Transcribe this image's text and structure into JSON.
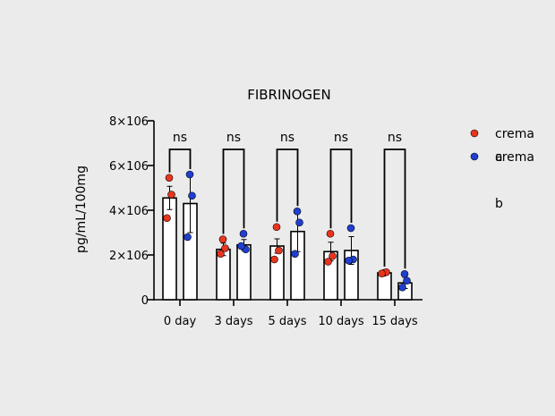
{
  "chart_data": {
    "type": "bar",
    "title": "FIBRINOGEN",
    "xlabel": "",
    "ylabel": "pg/mL/100mg",
    "ylim": [
      0,
      8000000
    ],
    "yticks": [
      0,
      2000000,
      4000000,
      6000000,
      8000000
    ],
    "ytick_labels": [
      "0",
      "2×106",
      "4×106",
      "6×106",
      "8×106"
    ],
    "categories": [
      "0 day",
      "3 days",
      "5 days",
      "10 days",
      "15 days"
    ],
    "grid": false,
    "legend_position": "right",
    "significance_labels": [
      "ns",
      "ns",
      "ns",
      "ns",
      "ns"
    ],
    "series": [
      {
        "name": "crema a",
        "legend_lines": [
          "crema",
          "a"
        ],
        "color": "#e8351e",
        "values": [
          4550000,
          2250000,
          2400000,
          2150000,
          1200000
        ],
        "errors": [
          520000,
          280000,
          320000,
          420000,
          40000
        ],
        "points": [
          [
            5450000,
            4700000,
            3650000
          ],
          [
            2700000,
            2300000,
            2050000
          ],
          [
            3250000,
            2200000,
            1800000
          ],
          [
            2950000,
            1950000,
            1700000
          ],
          [
            1200000,
            1230000,
            1170000
          ]
        ]
      },
      {
        "name": "crema b",
        "legend_lines": [
          "crema",
          "b"
        ],
        "color": "#1f3fd1",
        "values": [
          4300000,
          2450000,
          3050000,
          2200000,
          750000
        ],
        "errors": [
          1300000,
          240000,
          900000,
          620000,
          250000
        ],
        "points": [
          [
            5600000,
            4650000,
            2800000
          ],
          [
            2950000,
            2250000,
            2400000
          ],
          [
            3950000,
            3450000,
            2050000
          ],
          [
            3200000,
            1800000,
            1750000
          ],
          [
            1150000,
            850000,
            550000
          ]
        ]
      }
    ]
  }
}
